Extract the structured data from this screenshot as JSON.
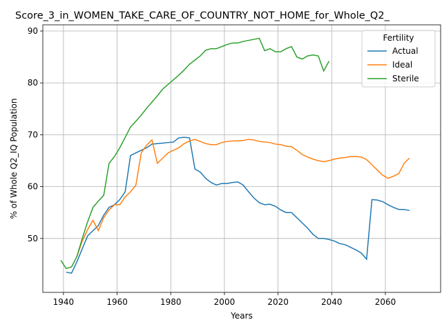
{
  "chart_data": {
    "type": "line",
    "title": "Score_3_in_WOMEN_TAKE_CARE_OF_COUNTRY_NOT_HOME_for_Whole_Q2_",
    "xlabel": "Years",
    "ylabel": "% of Whole Q2_IQ Population",
    "legend_title": "Fertility",
    "legend": "upper right",
    "grid": true,
    "xlim": [
      1932.3,
      2080.6
    ],
    "ylim": [
      39.6,
      91.2
    ],
    "xticks": [
      1940,
      1960,
      1980,
      2000,
      2020,
      2040,
      2060
    ],
    "yticks": [
      50,
      60,
      70,
      80,
      90
    ],
    "x": [
      1939,
      1941,
      1943,
      1945,
      1947,
      1949,
      1951,
      1953,
      1955,
      1957,
      1959,
      1961,
      1963,
      1965,
      1967,
      1969,
      1971,
      1973,
      1975,
      1977,
      1979,
      1981,
      1983,
      1985,
      1987,
      1989,
      1991,
      1993,
      1995,
      1997,
      1999,
      2001,
      2003,
      2005,
      2007,
      2009,
      2011,
      2013,
      2015,
      2017,
      2019,
      2021,
      2023,
      2025,
      2027,
      2029,
      2031,
      2033,
      2035,
      2037,
      2039,
      2041,
      2043,
      2045,
      2047,
      2049,
      2051,
      2053,
      2055,
      2057,
      2059,
      2061,
      2063,
      2065,
      2067,
      2069
    ],
    "series": [
      {
        "name": "Actual",
        "color": "#1f77b4",
        "values": [
          null,
          43.5,
          43.3,
          45.5,
          48,
          50.5,
          51.5,
          52.5,
          54.5,
          56,
          56.5,
          57.5,
          59,
          66,
          66.5,
          67,
          67.5,
          68.2,
          68.3,
          68.4,
          68.5,
          68.6,
          69.4,
          69.5,
          69.4,
          63.4,
          62.8,
          61.6,
          60.8,
          60.3,
          60.6,
          60.6,
          60.8,
          60.9,
          60.3,
          59,
          57.8,
          56.9,
          56.5,
          56.6,
          56.2,
          55.5,
          55,
          55,
          54,
          53,
          52,
          50.8,
          50,
          50,
          49.8,
          49.5,
          49,
          48.8,
          48.3,
          47.8,
          47.2,
          46,
          57.5,
          57.4,
          57.1,
          56.5,
          56,
          55.6,
          55.6,
          55.4
        ]
      },
      {
        "name": "Ideal",
        "color": "#ff7f0e",
        "values": [
          null,
          null,
          null,
          46.5,
          49.5,
          51.7,
          53.5,
          51.5,
          54,
          55.5,
          56.5,
          56.5,
          58,
          59,
          60.3,
          66.5,
          68,
          69,
          64.5,
          65.5,
          66.5,
          67,
          67.5,
          68.3,
          68.8,
          69.1,
          68.7,
          68.3,
          68.1,
          68.1,
          68.5,
          68.7,
          68.8,
          68.8,
          68.9,
          69.1,
          69,
          68.7,
          68.6,
          68.5,
          68.2,
          68.1,
          67.8,
          67.7,
          67,
          66.2,
          65.7,
          65.3,
          65,
          64.8,
          65,
          65.3,
          65.5,
          65.6,
          65.8,
          65.8,
          65.7,
          65.2,
          64.2,
          63.2,
          62.2,
          61.6,
          62,
          62.5,
          64.5,
          65.5
        ]
      },
      {
        "name": "Sterile",
        "color": "#2ca02c",
        "values": [
          45.8,
          44.2,
          44.5,
          46.5,
          50,
          53.2,
          56,
          57.2,
          58.3,
          64.5,
          65.8,
          67.5,
          69.5,
          71.5,
          72.6,
          73.8,
          75.1,
          76.3,
          77.5,
          78.8,
          79.7,
          80.6,
          81.5,
          82.5,
          83.6,
          84.4,
          85.2,
          86.3,
          86.6,
          86.6,
          87,
          87.4,
          87.7,
          87.7,
          88,
          88.2,
          88.4,
          88.6,
          86.2,
          86.6,
          86,
          86,
          86.6,
          87,
          85,
          84.6,
          85.2,
          85.4,
          85.2,
          82.3,
          84.2,
          null,
          null,
          null,
          null,
          null,
          null,
          null,
          null,
          null,
          null,
          null,
          null,
          null,
          null,
          null
        ]
      }
    ]
  }
}
